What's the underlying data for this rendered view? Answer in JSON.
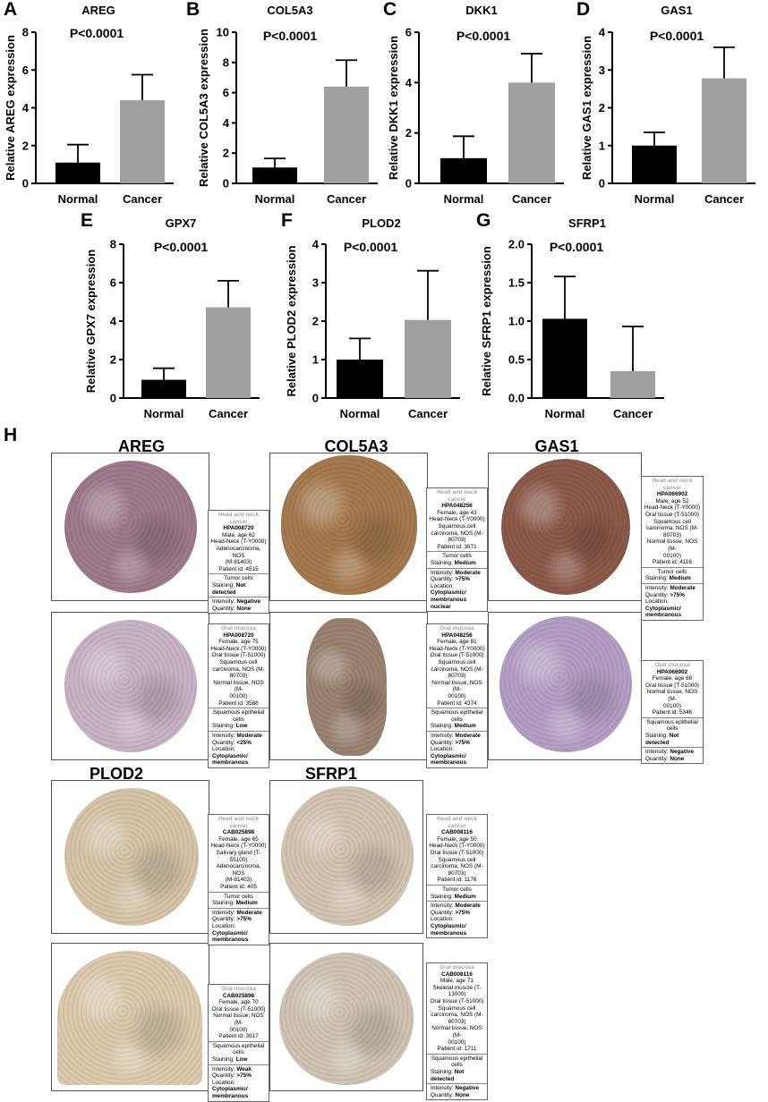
{
  "panel_letters": {
    "a": "A",
    "b": "B",
    "c": "C",
    "d": "D",
    "e": "E",
    "f": "F",
    "g": "G",
    "h": "H"
  },
  "categories": [
    "Normal",
    "Cancer"
  ],
  "pvalue": "P<0.0001",
  "colors": {
    "normal": "#000000",
    "cancer": "#a0a0a0"
  },
  "chart_data": [
    {
      "type": "bar",
      "title": "AREG",
      "ylabel": "Relative AREG expression",
      "ylim": [
        0,
        8
      ],
      "yticks": [
        0,
        2,
        4,
        6,
        8
      ],
      "tick_labels": [
        "0",
        "2",
        "4",
        "6",
        "8"
      ],
      "categories": [
        "Normal",
        "Cancer"
      ],
      "values": [
        1.1,
        4.4
      ],
      "errors": [
        0.95,
        1.35
      ],
      "annotation": "P<0.0001"
    },
    {
      "type": "bar",
      "title": "COL5A3",
      "ylabel": "Relative COL5A3 expression",
      "ylim": [
        0,
        10
      ],
      "yticks": [
        0,
        2,
        4,
        6,
        8,
        10
      ],
      "tick_labels": [
        "0",
        "2",
        "4",
        "6",
        "8",
        "10"
      ],
      "categories": [
        "Normal",
        "Cancer"
      ],
      "values": [
        1.05,
        6.4
      ],
      "errors": [
        0.6,
        1.75
      ],
      "annotation": "P<0.0001"
    },
    {
      "type": "bar",
      "title": "DKK1",
      "ylabel": "Relative DKK1 expression",
      "ylim": [
        0,
        6
      ],
      "yticks": [
        0,
        2,
        4,
        6
      ],
      "tick_labels": [
        "0",
        "2",
        "4",
        "6"
      ],
      "categories": [
        "Normal",
        "Cancer"
      ],
      "values": [
        1.0,
        4.0
      ],
      "errors": [
        0.87,
        1.15
      ],
      "annotation": "P<0.0001"
    },
    {
      "type": "bar",
      "title": "GAS1",
      "ylabel": "Relative GAS1 expression",
      "ylim": [
        0,
        4
      ],
      "yticks": [
        0,
        1,
        2,
        3,
        4
      ],
      "tick_labels": [
        "0",
        "1",
        "2",
        "3",
        "4"
      ],
      "categories": [
        "Normal",
        "Cancer"
      ],
      "values": [
        1.0,
        2.78
      ],
      "errors": [
        0.35,
        0.82
      ],
      "annotation": "P<0.0001"
    },
    {
      "type": "bar",
      "title": "GPX7",
      "ylabel": "Relative GPX7 expression",
      "ylim": [
        0,
        8
      ],
      "yticks": [
        0,
        2,
        4,
        6,
        8
      ],
      "tick_labels": [
        "0",
        "2",
        "4",
        "6",
        "8"
      ],
      "categories": [
        "Normal",
        "Cancer"
      ],
      "values": [
        0.95,
        4.72
      ],
      "errors": [
        0.6,
        1.38
      ],
      "annotation": "P<0.0001"
    },
    {
      "type": "bar",
      "title": "PLOD2",
      "ylabel": "Relative PLOD2 expression",
      "ylim": [
        0,
        4
      ],
      "yticks": [
        0,
        1,
        2,
        3,
        4
      ],
      "tick_labels": [
        "0",
        "1",
        "2",
        "3",
        "4"
      ],
      "categories": [
        "Normal",
        "Cancer"
      ],
      "values": [
        1.0,
        2.03
      ],
      "errors": [
        0.55,
        1.28
      ],
      "annotation": "P<0.0001"
    },
    {
      "type": "bar",
      "title": "SFRP1",
      "ylabel": "Relative SFRP1 expression",
      "ylim": [
        0,
        2
      ],
      "yticks": [
        0,
        0.5,
        1,
        1.5,
        2
      ],
      "tick_labels": [
        "0.0",
        "0.5",
        "1.0",
        "1.5",
        "2.0"
      ],
      "categories": [
        "Normal",
        "Cancer"
      ],
      "values": [
        1.03,
        0.35
      ],
      "errors": [
        0.55,
        0.58
      ],
      "annotation": "P<0.0001"
    }
  ],
  "ihc": {
    "titles": {
      "areg": "AREG",
      "col5a3": "COL5A3",
      "gas1": "GAS1",
      "plod2": "PLOD2",
      "sfrp1": "SFRP1"
    },
    "colors": {
      "areg_tumor": "#9c7a8c",
      "areg_normal": "#c7b3c4",
      "col5a3_tumor": "#a57a4f",
      "col5a3_normal": "#9a8270",
      "gas1_tumor": "#8b5a4a",
      "gas1_normal": "#b49fc4",
      "plod2_tumor": "#d6c3a8",
      "plod2_normal": "#dcc9ae",
      "sfrp1_tumor": "#d2c4b0",
      "sfrp1_normal": "#cfc4b4"
    },
    "cards": [
      {
        "header": "Head and neck cancer",
        "antibody": "HPA008720",
        "lines": [
          "Male, age 62",
          "Head-Neck (T-Y0000)",
          "Adenocarcinoma, NOS",
          "(M-81403)",
          "Patient id: 4515"
        ],
        "cell": "Tumor cells",
        "staining": "Not detected",
        "intensity": "Negative",
        "quantity": "None",
        "location": ""
      },
      {
        "header": "Head and neck cancer",
        "antibody": "HPA048256",
        "lines": [
          "Female, age 43",
          "Head-Neck (T-Y0000)",
          "Squamous cell",
          "carcinoma, NOS (M-",
          "80703)",
          "Patient id: 3671"
        ],
        "cell": "Tumor cells",
        "staining": "Medium",
        "intensity": "Moderate",
        "quantity": ">75%",
        "location": "Cytoplasmic/ membranous nuclear"
      },
      {
        "header": "Head and neck cancer",
        "antibody": "HPA066902",
        "lines": [
          "Male, age 52",
          "Head-Neck (T-Y0000)",
          "Oral tissue (T-51000)",
          "Squamous cell",
          "carcinoma, NOS (M-",
          "80703)",
          "Normal tissue, NOS (M-",
          "00100)",
          "Patient id: 4116"
        ],
        "cell": "Tumor cells",
        "staining": "Medium",
        "intensity": "Moderate",
        "quantity": ">75%",
        "location": "Cytoplasmic/ membranous"
      },
      {
        "header": "Oral mucosa",
        "antibody": "HPA008720",
        "lines": [
          "Female, age 75",
          "Head-Neck (T-Y0000)",
          "Oral tissue (T-51000)",
          "Squamous cell",
          "carcinoma, NOS (M-",
          "80703)",
          "Normal tissue, NOS (M-",
          "00100)",
          "Patient id: 3588"
        ],
        "cell": "Squamous epithelial cells",
        "staining": "Low",
        "intensity": "Moderate",
        "quantity": "<25%",
        "location": "Cytoplasmic/ membranous"
      },
      {
        "header": "Oral mucosa",
        "antibody": "HPA048256",
        "lines": [
          "Female, age 81",
          "Head-Neck (T-Y0000)",
          "Oral tissue (T-51000)",
          "Squamous cell",
          "carcinoma, NOS (M-",
          "80703)",
          "Normal tissue, NOS (M-",
          "00100)",
          "Patient id: 4374"
        ],
        "cell": "Squamous epithelial cells",
        "staining": "Medium",
        "intensity": "Moderate",
        "quantity": ">75%",
        "location": "Cytoplasmic/ membranous"
      },
      {
        "header": "Oral mucosa",
        "antibody": "HPA066902",
        "lines": [
          "Female, age 68",
          "Oral tissue (T-51000)",
          "Normal tissue, NOS (M-",
          "00100)",
          "Patient id: 5346"
        ],
        "cell": "Squamous epithelial cells",
        "staining": "Not detected",
        "intensity": "Negative",
        "quantity": "None",
        "location": ""
      },
      {
        "header": "Head and neck cancer",
        "antibody": "CAB025898",
        "lines": [
          "Female, age 65",
          "Head-Neck (T-Y0000)",
          "Salivary gland (T-",
          "55100)",
          "Adenocarcinoma, NOS",
          "(M-81403)",
          "Patient id: 405"
        ],
        "cell": "Tumor cells",
        "staining": "Medium",
        "intensity": "Moderate",
        "quantity": ">75%",
        "location": "Cytoplasmic/ membranous"
      },
      {
        "header": "Head and neck cancer",
        "antibody": "CAB008116",
        "lines": [
          "Female, age 50",
          "Head-Neck (T-Y0000)",
          "Oral tissue (T-51000)",
          "Squamous cell",
          "carcinoma, NOS (M-",
          "80703)",
          "Patient id: 1176"
        ],
        "cell": "Tumor cells",
        "staining": "Medium",
        "intensity": "Moderate",
        "quantity": ">75%",
        "location": "Cytoplasmic/ membranous"
      },
      {
        "header": "Oral mucosa",
        "antibody": "CAB025898",
        "lines": [
          "Female, age 70",
          "Oral tissue (T-51000)",
          "Normal tissue, NOS (M-",
          "00100)",
          "Patient id: 3917"
        ],
        "cell": "Squamous epithelial cells",
        "staining": "Low",
        "intensity": "Weak",
        "quantity": ">75%",
        "location": "Cytoplasmic/ membranous"
      },
      {
        "header": "Oral mucosa",
        "antibody": "CAB008116",
        "lines": [
          "Male, age 71",
          "Skeletal muscle (T-",
          "13000)",
          "Oral tissue (T-51000)",
          "Squamous cell",
          "carcinoma, NOS (M-",
          "80703)",
          "Normal tissue, NOS (M-",
          "00100)",
          "Patient id: 1711"
        ],
        "cell": "Squamous epithelial cells",
        "staining": "Not detected",
        "intensity": "Negative",
        "quantity": "None",
        "location": ""
      }
    ]
  },
  "labels": {
    "staining": "Staining:",
    "intensity": "Intensity:",
    "quantity": "Quantity:",
    "location": "Location:"
  }
}
